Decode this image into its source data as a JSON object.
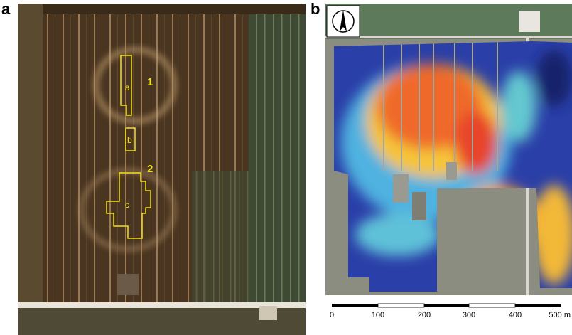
{
  "panels": [
    {
      "label": "a",
      "annotations": [
        "1",
        "2"
      ],
      "areas": [
        "a",
        "b",
        "c"
      ]
    },
    {
      "label": "b",
      "scale_labels": [
        "0",
        "100",
        "200",
        "300",
        "400",
        "500 m"
      ]
    }
  ]
}
